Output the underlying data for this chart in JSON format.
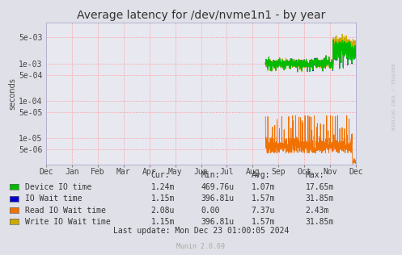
{
  "title": "Average latency for /dev/nvme1n1 - by year",
  "ylabel": "seconds",
  "background_color": "#e0e0e8",
  "plot_background": "#e8e8f0",
  "grid_color": "#ff9999",
  "x_labels": [
    "Dec",
    "Jan",
    "Feb",
    "Mar",
    "Apr",
    "May",
    "Jun",
    "Jul",
    "Aug",
    "Sep",
    "Oct",
    "Nov",
    "Dec"
  ],
  "x_positions": [
    0,
    1,
    2,
    3,
    4,
    5,
    6,
    7,
    8,
    9,
    10,
    11,
    12
  ],
  "ylim_min": 2e-06,
  "ylim_max": 0.012,
  "yticks": [
    5e-06,
    1e-05,
    5e-05,
    0.0001,
    0.0005,
    0.001,
    0.005
  ],
  "ylabels": [
    "5e-06",
    "1e-05",
    "5e-05",
    "1e-04",
    "5e-04",
    "1e-03",
    "5e-03"
  ],
  "legend_items": [
    {
      "label": "Device IO time",
      "color": "#00bb00"
    },
    {
      "label": "IO Wait time",
      "color": "#0000cc"
    },
    {
      "label": "Read IO Wait time",
      "color": "#f07000"
    },
    {
      "label": "Write IO Wait time",
      "color": "#ccaa00"
    }
  ],
  "legend_cols": [
    {
      "header": "Cur:",
      "values": [
        "1.24m",
        "1.15m",
        "2.08u",
        "1.15m"
      ]
    },
    {
      "header": "Min:",
      "values": [
        "469.76u",
        "396.81u",
        "0.00",
        "396.81u"
      ]
    },
    {
      "header": "Avg:",
      "values": [
        "1.07m",
        "1.57m",
        "7.37u",
        "1.57m"
      ]
    },
    {
      "header": "Max:",
      "values": [
        "17.65m",
        "31.85m",
        "2.43m",
        "31.85m"
      ]
    }
  ],
  "last_update": "Last update: Mon Dec 23 01:00:05 2024",
  "munin_version": "Munin 2.0.69",
  "watermark": "RRDTOOL / TOBI OETIKER",
  "title_fontsize": 10,
  "axis_fontsize": 7,
  "legend_fontsize": 7
}
